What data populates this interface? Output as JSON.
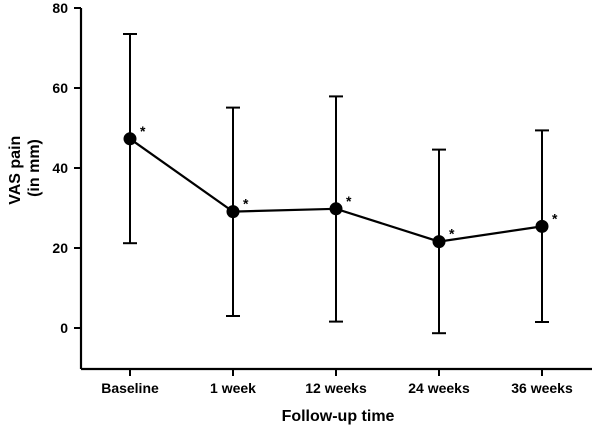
{
  "chart_data": {
    "type": "line",
    "categories": [
      "Baseline",
      "1 week",
      "12 weeks",
      "24 weeks",
      "36 weeks"
    ],
    "series": [
      {
        "values": [
          47.3,
          29.1,
          29.8,
          21.6,
          25.4
        ],
        "error_low": [
          21.2,
          3.0,
          1.6,
          -1.3,
          1.5
        ],
        "error_high": [
          73.5,
          55.1,
          57.9,
          44.6,
          49.4
        ],
        "annotations": [
          "*",
          "*",
          "*",
          "*",
          "*"
        ],
        "color": "#000000"
      }
    ],
    "ylabel_lines": [
      "VAS pain",
      "(in mm)"
    ],
    "xlabel": "Follow-up time",
    "ylim": [
      0,
      80
    ],
    "yticks": [
      0,
      20,
      40,
      60,
      80
    ],
    "grid": false,
    "legend": "none"
  }
}
